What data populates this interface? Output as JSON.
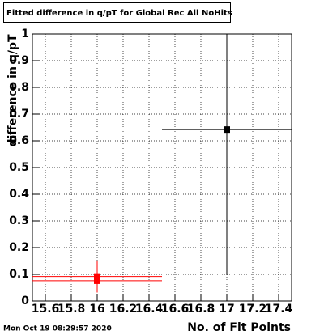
{
  "chart_data": {
    "type": "errorbar",
    "title": "Fitted difference in q/pT  for Global Rec All NoHits",
    "xlabel": "No. of Fit Points",
    "ylabel": "difference in q/pT",
    "timestamp": "Mon Oct 19 08:29:57 2020",
    "xlim": [
      15.5,
      17.5
    ],
    "xticks": [
      15.6,
      15.8,
      16,
      16.2,
      16.4,
      16.6,
      16.8,
      17,
      17.2,
      17.4
    ],
    "ylim": [
      0,
      1
    ],
    "yticks": [
      0,
      0.1,
      0.2,
      0.3,
      0.4,
      0.5,
      0.6,
      0.7,
      0.8,
      0.9,
      1
    ],
    "grid": true,
    "series": [
      {
        "color": "#ff0000",
        "x": [
          16,
          16
        ],
        "values": [
          0.092,
          0.076
        ],
        "xerr": [
          0.5,
          0.5
        ],
        "yerr": [
          0.06,
          0.03
        ]
      },
      {
        "color": "#000000",
        "x": [
          17
        ],
        "values": [
          0.642
        ],
        "xerr": [
          0.5
        ],
        "yerr": [
          0.545
        ]
      }
    ]
  }
}
